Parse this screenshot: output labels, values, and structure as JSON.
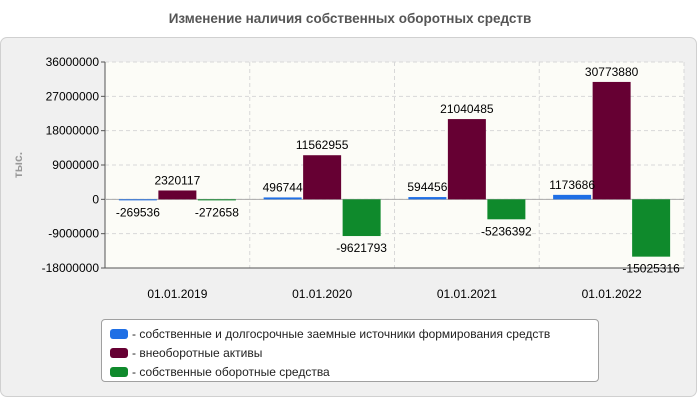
{
  "chart_data": {
    "type": "bar",
    "title": "Изменение наличия собственных оборотных средств",
    "ylabel": "тыс.",
    "xlabel": "",
    "ylim": [
      -18000000,
      36000000
    ],
    "yticks": [
      36000000,
      27000000,
      18000000,
      9000000,
      0,
      -9000000,
      -18000000
    ],
    "grid": true,
    "legend_position": "bottom",
    "categories": [
      "01.01.2019",
      "01.01.2020",
      "01.01.2021",
      "01.01.2022"
    ],
    "series": [
      {
        "name": "- собственные и долгосрочные заемные источники формирования средств",
        "color": "#1f6fe5",
        "values": [
          -269536,
          496744,
          594456,
          1173686
        ]
      },
      {
        "name": "- внеоборотные активы",
        "color": "#660033",
        "values": [
          2320117,
          11562955,
          21040485,
          30773880
        ]
      },
      {
        "name": "- собственные оборотные средства",
        "color": "#0f8a2c",
        "values": [
          -272658,
          -9621793,
          -5236392,
          -15025316
        ]
      }
    ]
  }
}
